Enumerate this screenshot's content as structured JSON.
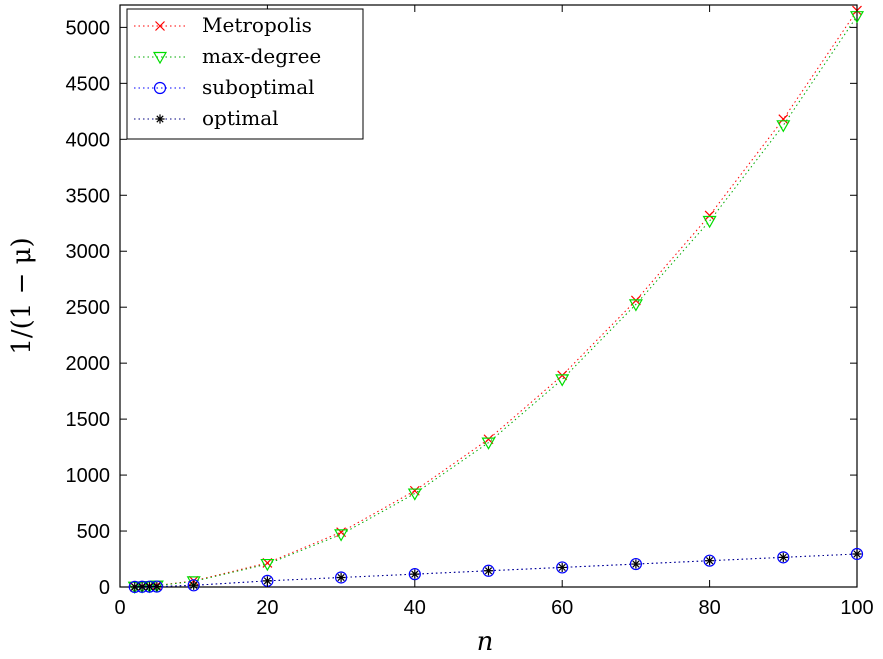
{
  "chart_data": {
    "type": "scatter",
    "xlabel": "n",
    "ylabel": "1/(1 − μ)",
    "xlim": [
      0,
      100
    ],
    "ylim": [
      0,
      5200
    ],
    "xticks": [
      0,
      20,
      40,
      60,
      80,
      100
    ],
    "yticks": [
      0,
      500,
      1000,
      1500,
      2000,
      2500,
      3000,
      3500,
      4000,
      4500,
      5000
    ],
    "grid": false,
    "legend_position": "top-left",
    "series": [
      {
        "name": "Metropolis",
        "marker": "x",
        "color": "#ff0000",
        "line_color": "#ff0000",
        "x": [
          2,
          3,
          4,
          5,
          10,
          20,
          30,
          40,
          50,
          60,
          70,
          80,
          90,
          100
        ],
        "y": [
          2,
          5,
          9,
          13,
          55,
          215,
          490,
          860,
          1320,
          1890,
          2560,
          3320,
          4180,
          5150
        ]
      },
      {
        "name": "max-degree",
        "marker": "triangle-down",
        "color": "#00dd00",
        "line_color": "#00aa00",
        "x": [
          2,
          3,
          4,
          5,
          10,
          20,
          30,
          40,
          50,
          60,
          70,
          80,
          90,
          100
        ],
        "y": [
          2,
          5,
          8,
          12,
          50,
          205,
          470,
          835,
          1290,
          1855,
          2525,
          3270,
          4125,
          5100
        ]
      },
      {
        "name": "suboptimal",
        "marker": "circle",
        "color": "#0000ff",
        "line_color": "#0000ff",
        "x": [
          2,
          3,
          4,
          5,
          10,
          20,
          30,
          40,
          50,
          60,
          70,
          80,
          90,
          100
        ],
        "y": [
          1,
          2,
          3,
          4,
          15,
          55,
          85,
          115,
          145,
          175,
          205,
          235,
          265,
          295
        ]
      },
      {
        "name": "optimal",
        "marker": "asterisk",
        "color": "#000000",
        "line_color": "#000080",
        "x": [
          2,
          3,
          4,
          5,
          10,
          20,
          30,
          40,
          50,
          60,
          70,
          80,
          90,
          100
        ],
        "y": [
          1,
          2,
          3,
          4,
          15,
          55,
          85,
          115,
          145,
          175,
          205,
          235,
          265,
          295
        ]
      }
    ]
  }
}
